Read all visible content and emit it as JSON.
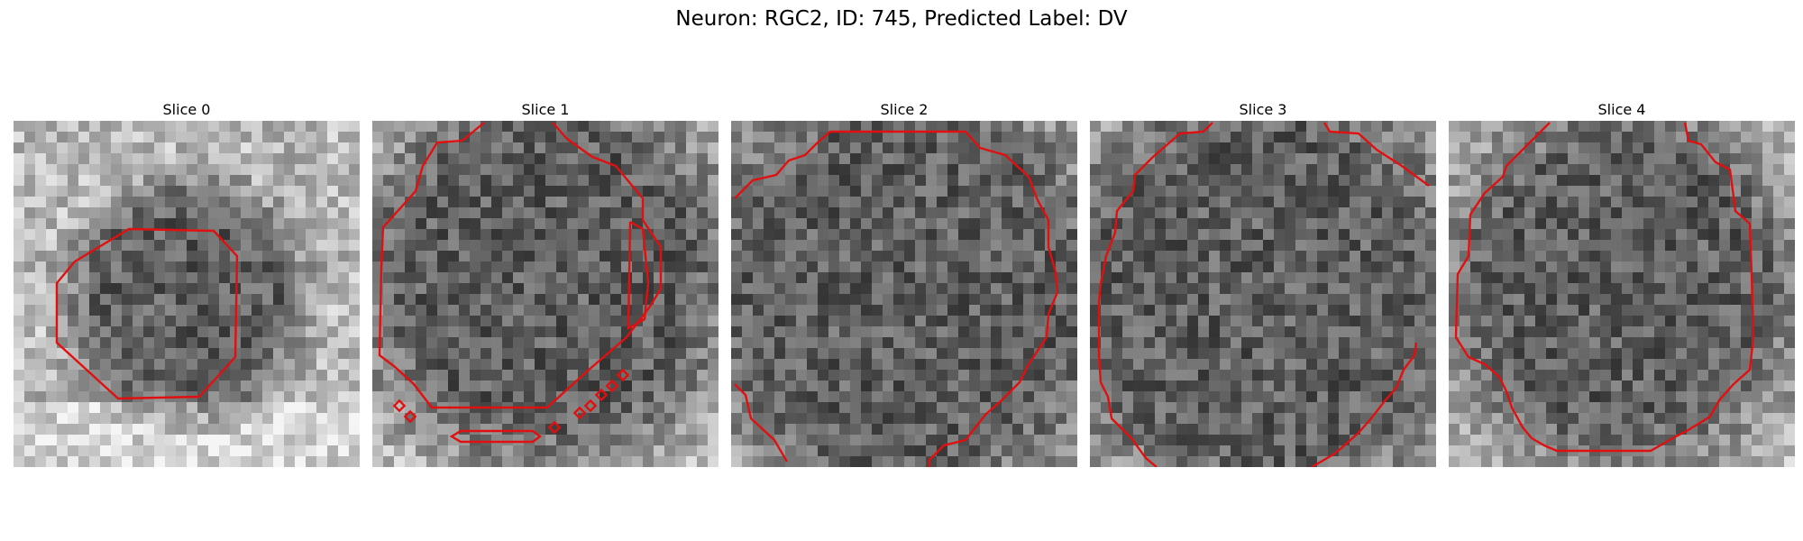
{
  "figure": {
    "title": "Neuron: RGC2, ID: 745, Predicted Label: DV"
  },
  "contour_color": "#e01010",
  "panels": [
    {
      "title": "Slice 0",
      "dark_cx": 0.5,
      "dark_cy": 0.52,
      "dark_r": 0.26,
      "bright_bottom": true,
      "seed": 11
    },
    {
      "title": "Slice 1",
      "dark_cx": 0.5,
      "dark_cy": 0.45,
      "dark_r": 0.42,
      "bright_bottom": false,
      "seed": 23
    },
    {
      "title": "Slice 2",
      "dark_cx": 0.5,
      "dark_cy": 0.5,
      "dark_r": 0.48,
      "bright_bottom": false,
      "seed": 37
    },
    {
      "title": "Slice 3",
      "dark_cx": 0.5,
      "dark_cy": 0.5,
      "dark_r": 0.48,
      "bright_bottom": false,
      "seed": 41
    },
    {
      "title": "Slice 4",
      "dark_cx": 0.5,
      "dark_cy": 0.48,
      "dark_r": 0.4,
      "bright_bottom": false,
      "seed": 53
    }
  ]
}
